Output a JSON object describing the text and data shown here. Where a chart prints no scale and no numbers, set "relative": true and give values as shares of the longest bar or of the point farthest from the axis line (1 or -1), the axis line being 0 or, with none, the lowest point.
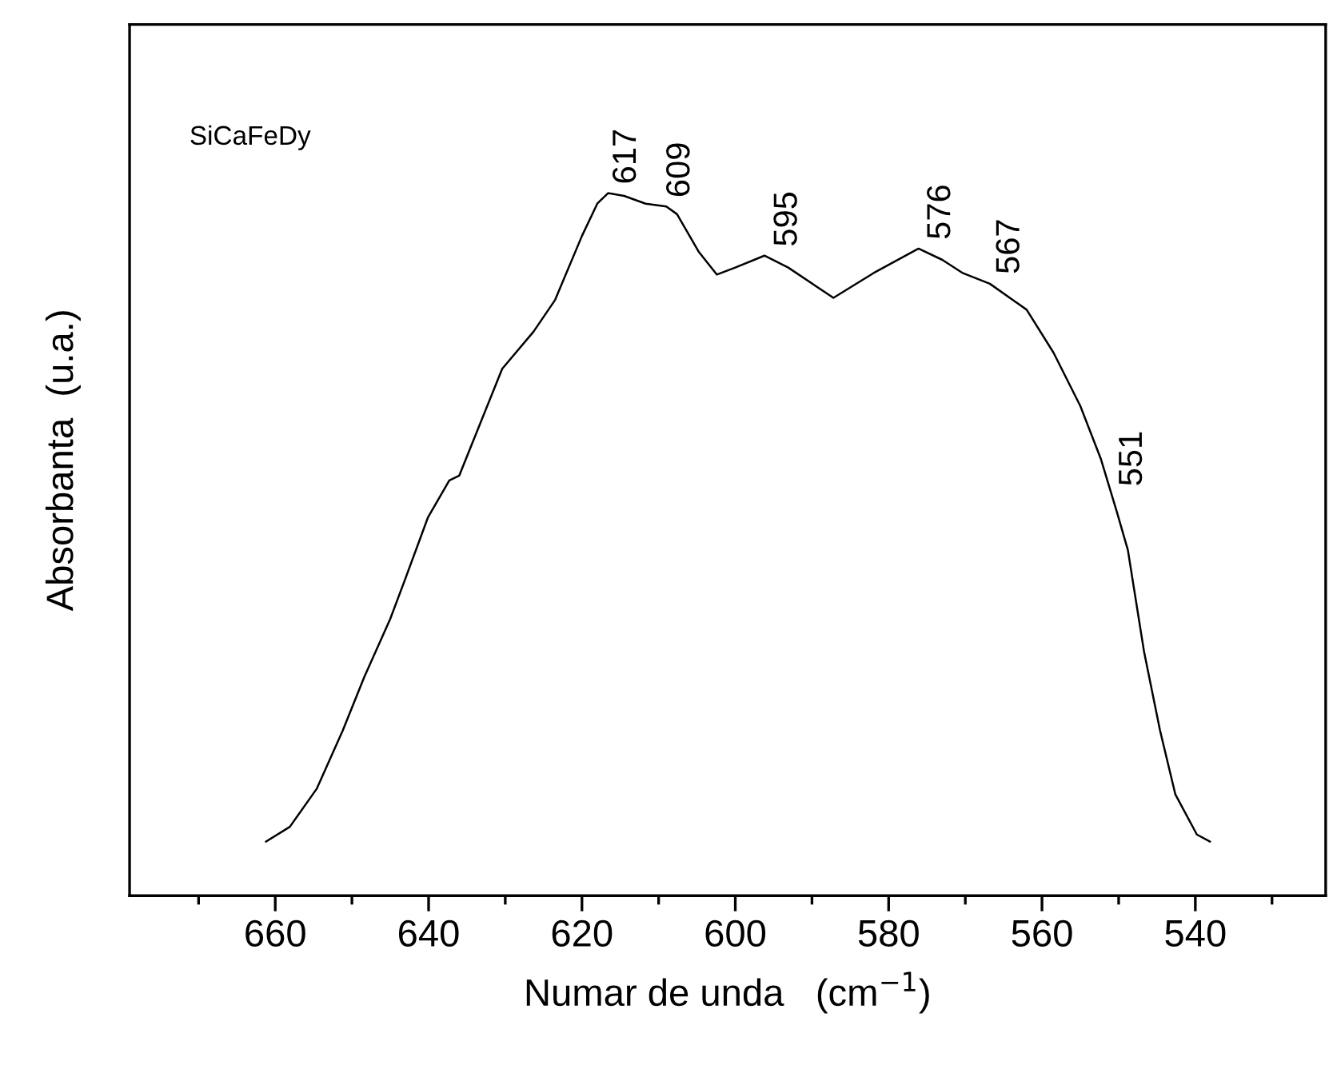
{
  "chart_data": {
    "type": "line",
    "relative": true,
    "xlabel": "Numar de unda   (cm$^{−1}$)",
    "ylabel": "Absorbanta  (u.a.)",
    "xlim": [
      679,
      523
    ],
    "xticks": [
      660,
      640,
      620,
      600,
      580,
      560,
      540
    ],
    "grid": false,
    "legend": false,
    "marker": "none",
    "line_style": "solid",
    "series": [
      {
        "color": "#000000",
        "x": [
          661.2,
          658.1,
          654.6,
          651.2,
          648.4,
          645.0,
          642.9,
          640.1,
          637.3,
          636.0,
          630.4,
          626.3,
          623.5,
          620.0,
          618.0,
          616.6,
          614.5,
          611.7,
          609.0,
          607.6,
          604.8,
          602.4,
          600.0,
          596.2,
          593.1,
          587.2,
          582.0,
          576.1,
          573.0,
          570.3,
          566.8,
          562.0,
          558.5,
          555.0,
          552.3,
          550.2,
          548.8,
          546.7,
          544.6,
          542.6,
          539.8,
          538.1
        ],
        "values": [
          0.077,
          0.098,
          0.152,
          0.235,
          0.311,
          0.394,
          0.455,
          0.538,
          0.591,
          0.598,
          0.75,
          0.803,
          0.848,
          0.939,
          0.985,
          1.0,
          0.996,
          0.985,
          0.981,
          0.97,
          0.917,
          0.884,
          0.894,
          0.911,
          0.894,
          0.851,
          0.886,
          0.921,
          0.905,
          0.886,
          0.871,
          0.834,
          0.773,
          0.697,
          0.621,
          0.545,
          0.492,
          0.348,
          0.235,
          0.144,
          0.087,
          0.077
        ]
      }
    ],
    "annotations": [
      "SiCaFeDy",
      {
        "text": "617",
        "x": 617,
        "y": 1.0
      },
      {
        "text": "609",
        "x": 610,
        "y": 0.981
      },
      {
        "text": "595",
        "x": 596,
        "y": 0.911
      },
      {
        "text": "576",
        "x": 576,
        "y": 0.921
      },
      {
        "text": "567",
        "x": 567,
        "y": 0.872
      },
      {
        "text": "551",
        "x": 551,
        "y": 0.57
      }
    ]
  }
}
